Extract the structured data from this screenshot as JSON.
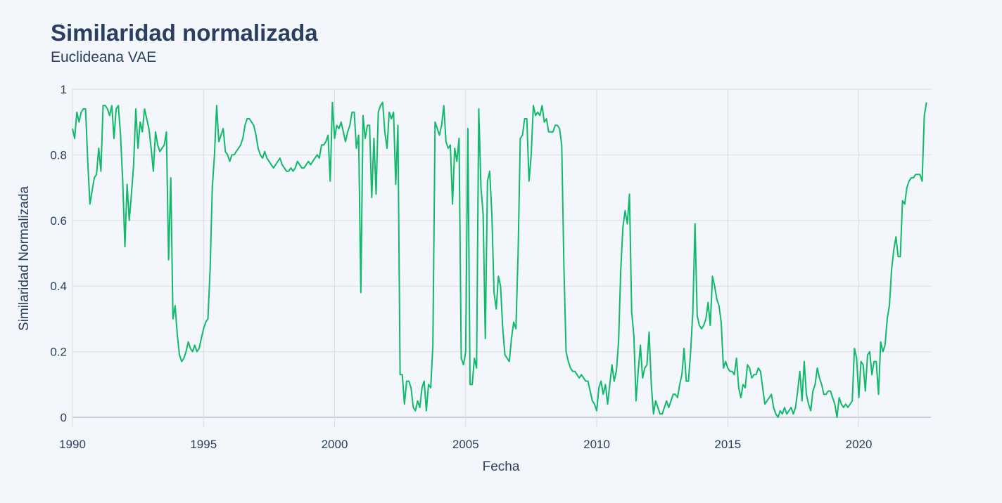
{
  "header": {
    "title": "Similaridad normalizada",
    "subtitle": "Euclideana VAE"
  },
  "chart_data": {
    "type": "line",
    "title": "Similaridad normalizada",
    "subtitle": "Euclideana VAE",
    "xlabel": "Fecha",
    "ylabel": "Similaridad Normalizada",
    "x_ticks": [
      "1990",
      "1995",
      "2000",
      "2005",
      "2010",
      "2015",
      "2020"
    ],
    "y_ticks": [
      "0",
      "0.2",
      "0.4",
      "0.6",
      "0.8",
      "1"
    ],
    "xlim": [
      1990.0,
      2022.75
    ],
    "ylim": [
      -0.03,
      1.0
    ],
    "grid": true,
    "legend": false,
    "line_color": "#11b96a",
    "series": [
      {
        "x_start": 1990.0,
        "x_step": 0.08333,
        "values": [
          0.88,
          0.85,
          0.93,
          0.9,
          0.93,
          0.94,
          0.94,
          0.78,
          0.65,
          0.69,
          0.73,
          0.74,
          0.82,
          0.75,
          0.95,
          0.95,
          0.94,
          0.92,
          0.95,
          0.85,
          0.94,
          0.95,
          0.86,
          0.72,
          0.52,
          0.71,
          0.6,
          0.68,
          0.77,
          0.94,
          0.82,
          0.9,
          0.87,
          0.94,
          0.91,
          0.88,
          0.82,
          0.75,
          0.87,
          0.83,
          0.81,
          0.82,
          0.83,
          0.87,
          0.48,
          0.73,
          0.3,
          0.34,
          0.25,
          0.19,
          0.17,
          0.18,
          0.2,
          0.23,
          0.21,
          0.2,
          0.22,
          0.2,
          0.21,
          0.24,
          0.27,
          0.29,
          0.3,
          0.45,
          0.7,
          0.8,
          0.95,
          0.84,
          0.86,
          0.88,
          0.81,
          0.8,
          0.78,
          0.8,
          0.8,
          0.81,
          0.82,
          0.83,
          0.85,
          0.89,
          0.91,
          0.91,
          0.9,
          0.89,
          0.86,
          0.82,
          0.8,
          0.79,
          0.81,
          0.79,
          0.78,
          0.77,
          0.76,
          0.77,
          0.78,
          0.79,
          0.77,
          0.76,
          0.75,
          0.75,
          0.76,
          0.75,
          0.76,
          0.78,
          0.77,
          0.76,
          0.76,
          0.77,
          0.78,
          0.77,
          0.78,
          0.79,
          0.8,
          0.79,
          0.83,
          0.83,
          0.84,
          0.86,
          0.72,
          0.96,
          0.85,
          0.89,
          0.88,
          0.9,
          0.87,
          0.84,
          0.87,
          0.89,
          0.93,
          0.93,
          0.82,
          0.86,
          0.38,
          0.92,
          0.85,
          0.89,
          0.89,
          0.67,
          0.85,
          0.68,
          0.93,
          0.95,
          0.96,
          0.87,
          0.82,
          0.93,
          0.91,
          0.93,
          0.71,
          0.89,
          0.13,
          0.13,
          0.04,
          0.11,
          0.11,
          0.09,
          0.03,
          0.02,
          0.05,
          0.03,
          0.09,
          0.11,
          0.02,
          0.1,
          0.09,
          0.22,
          0.9,
          0.88,
          0.86,
          0.89,
          0.95,
          0.84,
          0.82,
          0.83,
          0.65,
          0.82,
          0.78,
          0.85,
          0.18,
          0.16,
          0.2,
          0.88,
          0.1,
          0.1,
          0.18,
          0.15,
          0.94,
          0.7,
          0.62,
          0.24,
          0.72,
          0.75,
          0.62,
          0.38,
          0.33,
          0.43,
          0.4,
          0.27,
          0.19,
          0.18,
          0.17,
          0.24,
          0.29,
          0.27,
          0.5,
          0.85,
          0.86,
          0.91,
          0.91,
          0.72,
          0.8,
          0.95,
          0.92,
          0.93,
          0.92,
          0.95,
          0.9,
          0.91,
          0.87,
          0.87,
          0.87,
          0.89,
          0.89,
          0.88,
          0.83,
          0.46,
          0.2,
          0.17,
          0.15,
          0.14,
          0.14,
          0.13,
          0.12,
          0.13,
          0.12,
          0.11,
          0.11,
          0.08,
          0.05,
          0.04,
          0.02,
          0.09,
          0.11,
          0.07,
          0.1,
          0.04,
          0.1,
          0.16,
          0.11,
          0.14,
          0.23,
          0.45,
          0.58,
          0.63,
          0.59,
          0.68,
          0.32,
          0.25,
          0.05,
          0.14,
          0.22,
          0.12,
          0.15,
          0.16,
          0.26,
          0.1,
          0.01,
          0.05,
          0.03,
          0.01,
          0.01,
          0.03,
          0.05,
          0.03,
          0.05,
          0.07,
          0.07,
          0.06,
          0.1,
          0.13,
          0.21,
          0.11,
          0.11,
          0.2,
          0.32,
          0.59,
          0.31,
          0.28,
          0.27,
          0.28,
          0.3,
          0.35,
          0.28,
          0.43,
          0.4,
          0.36,
          0.34,
          0.29,
          0.15,
          0.17,
          0.15,
          0.14,
          0.14,
          0.13,
          0.18,
          0.09,
          0.06,
          0.1,
          0.09,
          0.16,
          0.15,
          0.12,
          0.13,
          0.13,
          0.15,
          0.14,
          0.09,
          0.04,
          0.05,
          0.06,
          0.07,
          0.03,
          0.01,
          0.0,
          0.02,
          0.01,
          0.03,
          0.01,
          0.02,
          0.03,
          0.01,
          0.03,
          0.08,
          0.14,
          0.05,
          0.17,
          0.07,
          0.04,
          0.02,
          0.08,
          0.1,
          0.15,
          0.12,
          0.1,
          0.07,
          0.07,
          0.08,
          0.08,
          0.06,
          0.04,
          0.0,
          0.06,
          0.04,
          0.03,
          0.04,
          0.03,
          0.04,
          0.05,
          0.21,
          0.18,
          0.06,
          0.17,
          0.16,
          0.08,
          0.19,
          0.2,
          0.13,
          0.17,
          0.17,
          0.07,
          0.23,
          0.2,
          0.22,
          0.3,
          0.34,
          0.45,
          0.51,
          0.55,
          0.49,
          0.49,
          0.66,
          0.65,
          0.7,
          0.72,
          0.73,
          0.73,
          0.74,
          0.74,
          0.74,
          0.72,
          0.92,
          0.96
        ]
      }
    ]
  }
}
